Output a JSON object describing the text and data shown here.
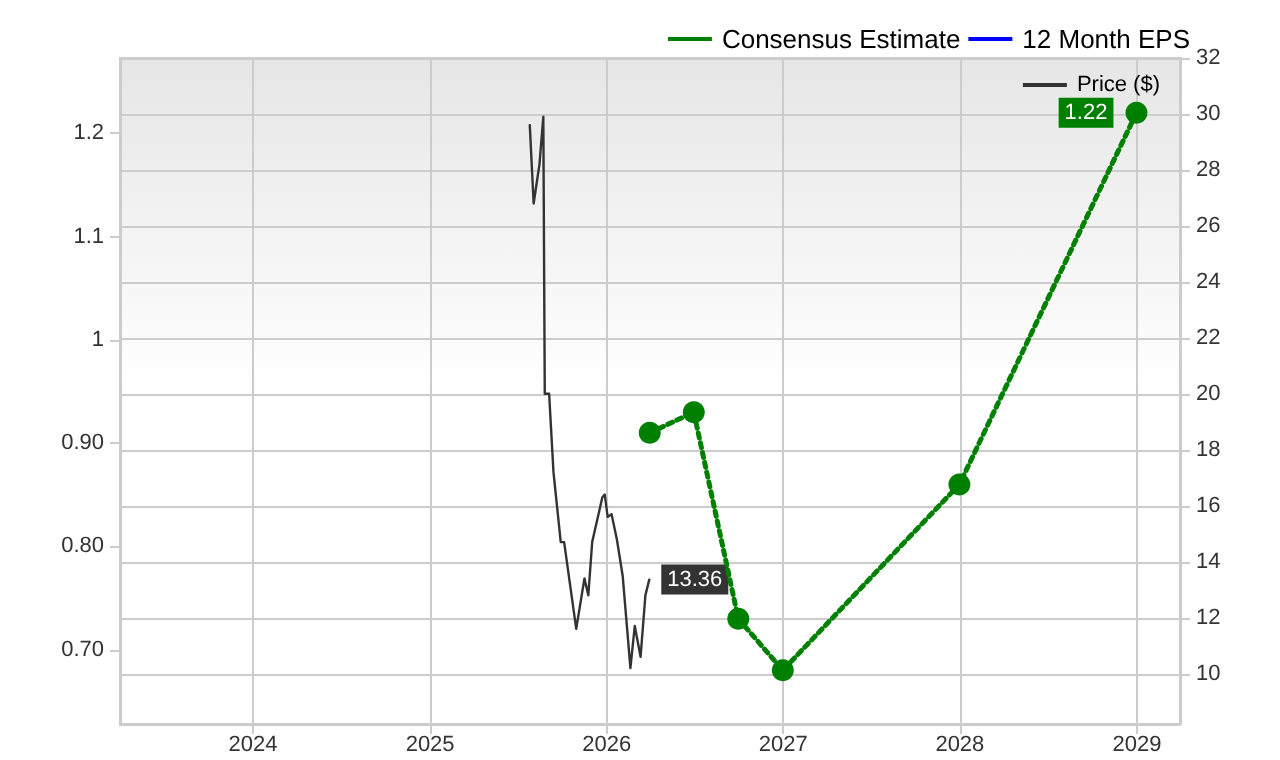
{
  "chart_data": {
    "type": "line",
    "series": [
      {
        "name": "Consensus Estimate",
        "color": "#008000",
        "marker": "circle",
        "line_style": "dotted",
        "x": [
          "2026-03-31",
          "2026-06-30",
          "2026-09-30",
          "2026-12-31",
          "2027-12-31",
          "2028-12-31"
        ],
        "values": [
          0.91,
          0.93,
          0.73,
          0.68,
          0.86,
          1.22
        ],
        "value_labels": [
          null,
          null,
          null,
          null,
          null,
          "1.22"
        ]
      },
      {
        "name": "12 Month EPS",
        "color": "#0000ff",
        "marker": "none",
        "line_style": "dashed"
      },
      {
        "name": "Price ($)",
        "color": "#333333",
        "marker": "none",
        "line_style": "solid",
        "axis": "y2",
        "x": [
          "2025-07-26",
          "2025-08-03",
          "2025-08-15",
          "2025-08-23",
          "2025-08-26",
          "2025-09-04",
          "2025-09-13",
          "2025-09-28",
          "2025-10-05",
          "2025-10-30",
          "2025-11-16",
          "2025-11-24",
          "2025-12-02",
          "2025-12-23",
          "2025-12-28",
          "2026-01-03",
          "2026-01-11",
          "2026-01-22",
          "2026-02-03",
          "2026-02-19",
          "2026-02-28",
          "2026-03-12",
          "2026-03-22",
          "2026-03-30"
        ],
        "values": [
          29.6,
          26.8,
          28.2,
          29.9,
          20.0,
          20.0,
          17.2,
          14.7,
          14.7,
          11.6,
          13.4,
          12.8,
          14.7,
          16.3,
          16.4,
          15.6,
          15.7,
          14.8,
          13.5,
          10.2,
          11.7,
          10.6,
          12.8,
          13.36
        ],
        "value_labels": [
          null,
          null,
          null,
          null,
          null,
          null,
          null,
          null,
          null,
          null,
          null,
          null,
          null,
          null,
          null,
          null,
          null,
          null,
          null,
          null,
          null,
          null,
          null,
          "13.36"
        ]
      }
    ],
    "xlim": [
      "2023-04-01",
      "2029-03-31"
    ],
    "xticks": [
      "2024",
      "2025",
      "2026",
      "2027",
      "2028",
      "2029"
    ],
    "ylim": [
      0.628,
      1.273
    ],
    "yticks": [
      {
        "value": 0.7,
        "label": "0.70"
      },
      {
        "value": 0.8,
        "label": "0.80"
      },
      {
        "value": 0.9,
        "label": "0.90"
      },
      1,
      1.1,
      1.2
    ],
    "y2lim": [
      8.2,
      32
    ],
    "y2ticks": [
      10,
      12,
      14,
      16,
      18,
      20,
      22,
      24,
      26,
      28,
      30,
      32
    ],
    "grid": true,
    "legend": "top right"
  }
}
